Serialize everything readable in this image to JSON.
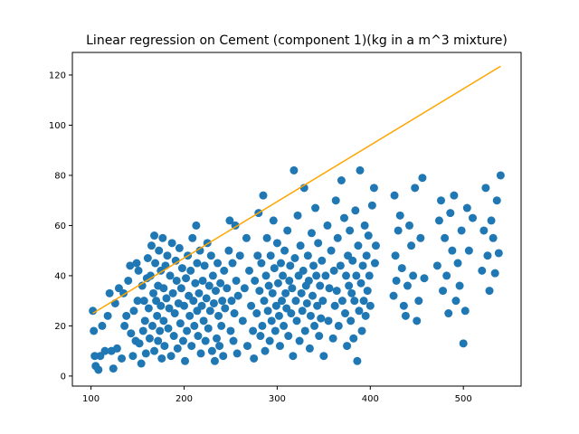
{
  "chart_data": {
    "type": "scatter",
    "title": "Linear regression on Cement (component 1)(kg in a m^3 mixture)",
    "xlabel": "",
    "ylabel": "",
    "xlim": [
      80,
      562
    ],
    "ylim": [
      -4,
      129
    ],
    "xticks": [
      100,
      200,
      300,
      400,
      500
    ],
    "yticks": [
      0,
      20,
      40,
      60,
      80,
      100,
      120
    ],
    "grid": false,
    "point_color": "#1f77b4",
    "line_color": "#ffa500",
    "regression_line": {
      "x": [
        102,
        540
      ],
      "y": [
        25,
        123.5
      ]
    },
    "points": [
      [
        102,
        26
      ],
      [
        103,
        18
      ],
      [
        104,
        8
      ],
      [
        105,
        4
      ],
      [
        108,
        2.5
      ],
      [
        110,
        8
      ],
      [
        112,
        20
      ],
      [
        115,
        10
      ],
      [
        118,
        24
      ],
      [
        120,
        33
      ],
      [
        122,
        10
      ],
      [
        124,
        3
      ],
      [
        126,
        29
      ],
      [
        128,
        11
      ],
      [
        130,
        35
      ],
      [
        133,
        7
      ],
      [
        135,
        33
      ],
      [
        136,
        20
      ],
      [
        138,
        24
      ],
      [
        140,
        38
      ],
      [
        142,
        44
      ],
      [
        143,
        17
      ],
      [
        145,
        8
      ],
      [
        146,
        26
      ],
      [
        148,
        14
      ],
      [
        149,
        45
      ],
      [
        150,
        30
      ],
      [
        151,
        42
      ],
      [
        152,
        13
      ],
      [
        154,
        5
      ],
      [
        155,
        36
      ],
      [
        156,
        18
      ],
      [
        157,
        30
      ],
      [
        158,
        22
      ],
      [
        159,
        9
      ],
      [
        160,
        39
      ],
      [
        161,
        47
      ],
      [
        162,
        27
      ],
      [
        163,
        15
      ],
      [
        164,
        40
      ],
      [
        165,
        52
      ],
      [
        166,
        20
      ],
      [
        167,
        33
      ],
      [
        168,
        56
      ],
      [
        168,
        10
      ],
      [
        169,
        45
      ],
      [
        170,
        30
      ],
      [
        171,
        24
      ],
      [
        172,
        36
      ],
      [
        172,
        14
      ],
      [
        173,
        50
      ],
      [
        174,
        18
      ],
      [
        175,
        42
      ],
      [
        175,
        28
      ],
      [
        176,
        7
      ],
      [
        177,
        55
      ],
      [
        178,
        35
      ],
      [
        178,
        22
      ],
      [
        179,
        12
      ],
      [
        180,
        44
      ],
      [
        181,
        31
      ],
      [
        182,
        48
      ],
      [
        183,
        19
      ],
      [
        184,
        27
      ],
      [
        185,
        40
      ],
      [
        186,
        8
      ],
      [
        187,
        53
      ],
      [
        188,
        33
      ],
      [
        189,
        16
      ],
      [
        190,
        25
      ],
      [
        191,
        46
      ],
      [
        192,
        38
      ],
      [
        193,
        11
      ],
      [
        194,
        29
      ],
      [
        195,
        51
      ],
      [
        196,
        21
      ],
      [
        197,
        35
      ],
      [
        198,
        43
      ],
      [
        199,
        14
      ],
      [
        200,
        28
      ],
      [
        201,
        6
      ],
      [
        202,
        39
      ],
      [
        203,
        18
      ],
      [
        204,
        48
      ],
      [
        205,
        32
      ],
      [
        206,
        24
      ],
      [
        207,
        42
      ],
      [
        208,
        12
      ],
      [
        209,
        55
      ],
      [
        210,
        30
      ],
      [
        211,
        20
      ],
      [
        212,
        37
      ],
      [
        213,
        60
      ],
      [
        214,
        26
      ],
      [
        214,
        45
      ],
      [
        215,
        16
      ],
      [
        216,
        33
      ],
      [
        217,
        50
      ],
      [
        218,
        9
      ],
      [
        219,
        28
      ],
      [
        220,
        38
      ],
      [
        221,
        22
      ],
      [
        222,
        44
      ],
      [
        223,
        14
      ],
      [
        224,
        31
      ],
      [
        225,
        53
      ],
      [
        226,
        19
      ],
      [
        227,
        36
      ],
      [
        228,
        26
      ],
      [
        229,
        48
      ],
      [
        230,
        10
      ],
      [
        231,
        40
      ],
      [
        232,
        29
      ],
      [
        233,
        6
      ],
      [
        234,
        34
      ],
      [
        235,
        15
      ],
      [
        236,
        45
      ],
      [
        237,
        24
      ],
      [
        238,
        12
      ],
      [
        239,
        37
      ],
      [
        240,
        20
      ],
      [
        241,
        30
      ],
      [
        242,
        8
      ],
      [
        243,
        42
      ],
      [
        244,
        27
      ],
      [
        246,
        35
      ],
      [
        248,
        50
      ],
      [
        249,
        62
      ],
      [
        250,
        18
      ],
      [
        251,
        30
      ],
      [
        252,
        45
      ],
      [
        253,
        14
      ],
      [
        254,
        25
      ],
      [
        255,
        60
      ],
      [
        256,
        38
      ],
      [
        257,
        9
      ],
      [
        258,
        32
      ],
      [
        260,
        48
      ],
      [
        263,
        22
      ],
      [
        265,
        35
      ],
      [
        267,
        55
      ],
      [
        268,
        12
      ],
      [
        270,
        42
      ],
      [
        272,
        28
      ],
      [
        274,
        18
      ],
      [
        275,
        7
      ],
      [
        276,
        38
      ],
      [
        278,
        25
      ],
      [
        279,
        48
      ],
      [
        280,
        65
      ],
      [
        281,
        34
      ],
      [
        282,
        16
      ],
      [
        283,
        45
      ],
      [
        284,
        20
      ],
      [
        285,
        72
      ],
      [
        286,
        30
      ],
      [
        287,
        10
      ],
      [
        288,
        40
      ],
      [
        289,
        55
      ],
      [
        290,
        26
      ],
      [
        291,
        36
      ],
      [
        292,
        14
      ],
      [
        293,
        48
      ],
      [
        294,
        22
      ],
      [
        295,
        33
      ],
      [
        296,
        62
      ],
      [
        297,
        43
      ],
      [
        298,
        18
      ],
      [
        299,
        28
      ],
      [
        300,
        53
      ],
      [
        301,
        37
      ],
      [
        302,
        24
      ],
      [
        303,
        12
      ],
      [
        304,
        45
      ],
      [
        305,
        30
      ],
      [
        306,
        40
      ],
      [
        307,
        20
      ],
      [
        308,
        50
      ],
      [
        309,
        33
      ],
      [
        310,
        27
      ],
      [
        311,
        58
      ],
      [
        312,
        16
      ],
      [
        313,
        38
      ],
      [
        314,
        44
      ],
      [
        315,
        25
      ],
      [
        316,
        35
      ],
      [
        317,
        8
      ],
      [
        318,
        82
      ],
      [
        319,
        47
      ],
      [
        320,
        30
      ],
      [
        321,
        22
      ],
      [
        322,
        64
      ],
      [
        323,
        40
      ],
      [
        324,
        14
      ],
      [
        325,
        52
      ],
      [
        326,
        33
      ],
      [
        327,
        26
      ],
      [
        328,
        42
      ],
      [
        329,
        75
      ],
      [
        330,
        18
      ],
      [
        331,
        36
      ],
      [
        332,
        29
      ],
      [
        333,
        48
      ],
      [
        334,
        38
      ],
      [
        335,
        11
      ],
      [
        336,
        24
      ],
      [
        337,
        57
      ],
      [
        338,
        32
      ],
      [
        339,
        44
      ],
      [
        340,
        20
      ],
      [
        341,
        67
      ],
      [
        342,
        40
      ],
      [
        343,
        28
      ],
      [
        344,
        53
      ],
      [
        345,
        16
      ],
      [
        346,
        36
      ],
      [
        347,
        23
      ],
      [
        348,
        46
      ],
      [
        349,
        30
      ],
      [
        350,
        8
      ],
      [
        352,
        40
      ],
      [
        354,
        60
      ],
      [
        355,
        22
      ],
      [
        356,
        35
      ],
      [
        358,
        50
      ],
      [
        360,
        15
      ],
      [
        361,
        42
      ],
      [
        362,
        28
      ],
      [
        363,
        70
      ],
      [
        364,
        34
      ],
      [
        365,
        55
      ],
      [
        366,
        20
      ],
      [
        368,
        44
      ],
      [
        369,
        78
      ],
      [
        370,
        30
      ],
      [
        372,
        63
      ],
      [
        373,
        25
      ],
      [
        374,
        40
      ],
      [
        375,
        12
      ],
      [
        376,
        48
      ],
      [
        377,
        36
      ],
      [
        378,
        58
      ],
      [
        379,
        22
      ],
      [
        380,
        33
      ],
      [
        381,
        46
      ],
      [
        382,
        15
      ],
      [
        383,
        30
      ],
      [
        384,
        66
      ],
      [
        385,
        40
      ],
      [
        386,
        6
      ],
      [
        387,
        52
      ],
      [
        388,
        26
      ],
      [
        389,
        82
      ],
      [
        390,
        37
      ],
      [
        391,
        18
      ],
      [
        392,
        44
      ],
      [
        393,
        30
      ],
      [
        394,
        60
      ],
      [
        395,
        24
      ],
      [
        396,
        48
      ],
      [
        397,
        34
      ],
      [
        398,
        56
      ],
      [
        399,
        40
      ],
      [
        400,
        28
      ],
      [
        402,
        68
      ],
      [
        404,
        75
      ],
      [
        405,
        45
      ],
      [
        406,
        52
      ],
      [
        425,
        32
      ],
      [
        426,
        72
      ],
      [
        427,
        48
      ],
      [
        428,
        38
      ],
      [
        430,
        58
      ],
      [
        432,
        64
      ],
      [
        434,
        43
      ],
      [
        436,
        28
      ],
      [
        438,
        24
      ],
      [
        440,
        36
      ],
      [
        442,
        60
      ],
      [
        444,
        52
      ],
      [
        446,
        40
      ],
      [
        448,
        75
      ],
      [
        450,
        22
      ],
      [
        452,
        30
      ],
      [
        454,
        55
      ],
      [
        456,
        79
      ],
      [
        458,
        39
      ],
      [
        472,
        44
      ],
      [
        474,
        62
      ],
      [
        476,
        70
      ],
      [
        478,
        34
      ],
      [
        480,
        55
      ],
      [
        482,
        40
      ],
      [
        484,
        25
      ],
      [
        486,
        65
      ],
      [
        488,
        50
      ],
      [
        490,
        72
      ],
      [
        492,
        30
      ],
      [
        494,
        45
      ],
      [
        496,
        36
      ],
      [
        498,
        58
      ],
      [
        500,
        13
      ],
      [
        502,
        26
      ],
      [
        504,
        67
      ],
      [
        506,
        50
      ],
      [
        510,
        63
      ],
      [
        520,
        42
      ],
      [
        522,
        58
      ],
      [
        524,
        75
      ],
      [
        526,
        48
      ],
      [
        528,
        34
      ],
      [
        530,
        62
      ],
      [
        532,
        55
      ],
      [
        534,
        41
      ],
      [
        536,
        70
      ],
      [
        538,
        49
      ],
      [
        540,
        80
      ]
    ]
  }
}
